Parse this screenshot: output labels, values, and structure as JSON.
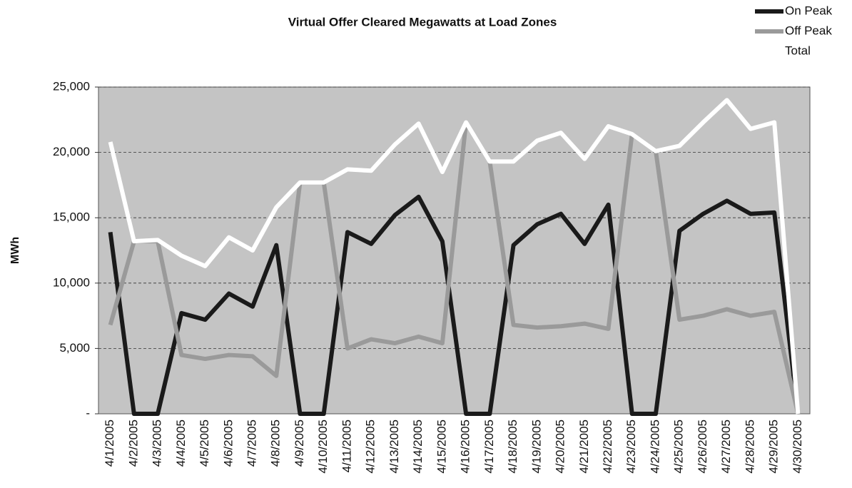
{
  "chart_data": {
    "type": "line",
    "title": "Virtual Offer Cleared Megawatts at Load Zones",
    "y_label": "MWh",
    "categories": [
      "4/1/2005",
      "4/2/2005",
      "4/3/2005",
      "4/4/2005",
      "4/5/2005",
      "4/6/2005",
      "4/7/2005",
      "4/8/2005",
      "4/9/2005",
      "4/10/2005",
      "4/11/2005",
      "4/12/2005",
      "4/13/2005",
      "4/14/2005",
      "4/15/2005",
      "4/16/2005",
      "4/17/2005",
      "4/18/2005",
      "4/19/2005",
      "4/20/2005",
      "4/21/2005",
      "4/22/2005",
      "4/23/2005",
      "4/24/2005",
      "4/25/2005",
      "4/26/2005",
      "4/27/2005",
      "4/28/2005",
      "4/29/2005",
      "4/30/2005"
    ],
    "series": [
      {
        "name": "On Peak",
        "color": "#1a1a1a",
        "values": [
          13900,
          0,
          0,
          7700,
          7200,
          9200,
          8200,
          12900,
          0,
          0,
          13900,
          13000,
          15200,
          16600,
          13200,
          0,
          0,
          12900,
          14500,
          15300,
          13000,
          16000,
          0,
          0,
          14000,
          15300,
          16300,
          15300,
          15400,
          0
        ]
      },
      {
        "name": "Off Peak",
        "color": "#9a9a9a",
        "values": [
          6800,
          13200,
          13200,
          4500,
          4200,
          4500,
          4400,
          2900,
          17700,
          17700,
          5000,
          5700,
          5400,
          5900,
          5400,
          22300,
          19300,
          6800,
          6600,
          6700,
          6900,
          6500,
          21400,
          20100,
          7200,
          7500,
          8000,
          7500,
          7800,
          0
        ]
      },
      {
        "name": "Total",
        "color": "#ffffff",
        "values": [
          20800,
          13200,
          13300,
          12100,
          11300,
          13500,
          12500,
          15800,
          17700,
          17700,
          18700,
          18600,
          20600,
          22200,
          18500,
          22300,
          19300,
          19300,
          20900,
          21500,
          19500,
          22000,
          21400,
          20100,
          20500,
          22300,
          24000,
          21800,
          22300,
          0
        ]
      }
    ],
    "ylim": [
      0,
      25000
    ],
    "yticks": [
      {
        "value": 0,
        "label": "-"
      },
      {
        "value": 5000,
        "label": "5,000"
      },
      {
        "value": 10000,
        "label": "10,000"
      },
      {
        "value": 15000,
        "label": "15,000"
      },
      {
        "value": 20000,
        "label": "20,000"
      },
      {
        "value": 25000,
        "label": "25,000"
      }
    ],
    "grid": true,
    "legend": "top-right"
  }
}
